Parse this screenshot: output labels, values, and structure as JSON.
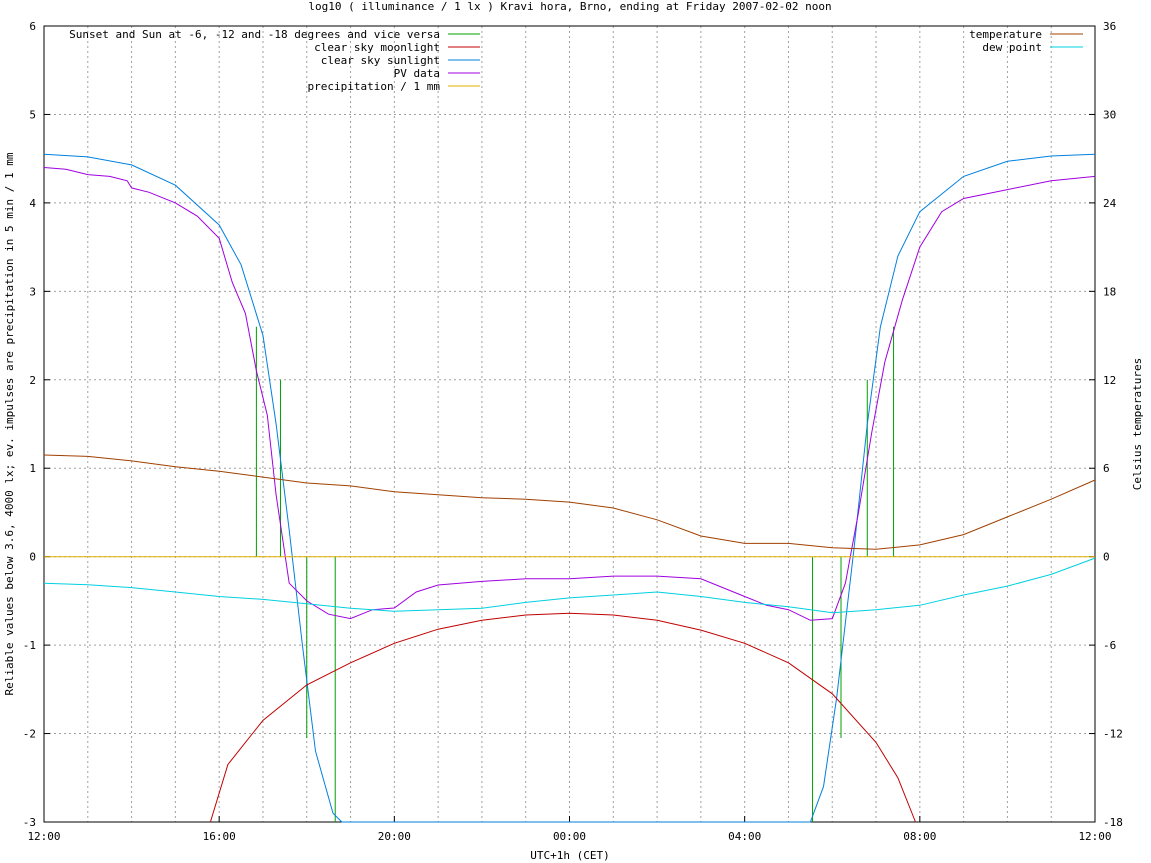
{
  "chart_data": {
    "type": "line",
    "title": "log10 ( illuminance / 1 lx ) Kravi hora, Brno, ending at Friday 2007-02-02 noon",
    "xlabel": "UTC+1h (CET)",
    "ylabel": "Reliable values below 3.6, 4000 lx; ev. impulses are precipitation in 5 min / 1 mm",
    "y2label": "Celsius temperatures",
    "xlim": [
      0,
      24
    ],
    "ylim": [
      -3,
      6
    ],
    "y2lim": [
      -18,
      36
    ],
    "x_unit": "hours since 12:00 (Thursday 2007-02-01)",
    "x_ticks": [
      {
        "v": 0,
        "label": "12:00"
      },
      {
        "v": 4,
        "label": "16:00"
      },
      {
        "v": 8,
        "label": "20:00"
      },
      {
        "v": 12,
        "label": "00:00"
      },
      {
        "v": 16,
        "label": "04:00"
      },
      {
        "v": 20,
        "label": "08:00"
      },
      {
        "v": 24,
        "label": "12:00"
      }
    ],
    "y_ticks": [
      {
        "v": 6,
        "label": "6"
      },
      {
        "v": 5,
        "label": "5"
      },
      {
        "v": 4,
        "label": "4"
      },
      {
        "v": 3,
        "label": "3"
      },
      {
        "v": 2,
        "label": "2"
      },
      {
        "v": 1,
        "label": "1"
      },
      {
        "v": 0,
        "label": "0"
      },
      {
        "v": -1,
        "label": "-1"
      },
      {
        "v": -2,
        "label": "-2"
      },
      {
        "v": -3,
        "label": "-3"
      }
    ],
    "y2_ticks": [
      {
        "v": 36,
        "label": "36"
      },
      {
        "v": 30,
        "label": "30"
      },
      {
        "v": 24,
        "label": "24"
      },
      {
        "v": 18,
        "label": "18"
      },
      {
        "v": 12,
        "label": "12"
      },
      {
        "v": 6,
        "label": "6"
      },
      {
        "v": 0,
        "label": "0"
      },
      {
        "v": -6,
        "label": "-6"
      },
      {
        "v": -12,
        "label": "-12"
      },
      {
        "v": -18,
        "label": "-18"
      }
    ],
    "grid": true,
    "grid_step_hours": 1,
    "legend_left": [
      {
        "label": "Sunset and Sun at -6, -12 and -18 degrees and vice versa",
        "color": "#00a000"
      },
      {
        "label": "clear sky moonlight",
        "color": "#c00000"
      },
      {
        "label": "clear sky sunlight",
        "color": "#0080e0"
      },
      {
        "label": "PV data",
        "color": "#a000e0"
      },
      {
        "label": "precipitation / 1 mm",
        "color": "#e0b000"
      }
    ],
    "legend_right": [
      {
        "label": "temperature",
        "color": "#a04000"
      },
      {
        "label": "dew point",
        "color": "#00d0e0"
      }
    ],
    "sun_markers": [
      {
        "x": 4.85,
        "y": 2.6
      },
      {
        "x": 5.4,
        "y": 2.0
      },
      {
        "x": 6.0,
        "y": -2.05
      },
      {
        "x": 6.65,
        "y": -3.0
      },
      {
        "x": 17.55,
        "y": -3.0
      },
      {
        "x": 18.2,
        "y": -2.05
      },
      {
        "x": 18.8,
        "y": 2.0
      },
      {
        "x": 19.4,
        "y": 2.6
      }
    ],
    "series": [
      {
        "name": "clear sky sunlight",
        "color": "#0080e0",
        "axis": "y1",
        "x": [
          0,
          1,
          2,
          3,
          4,
          4.5,
          5,
          5.3,
          5.6,
          5.9,
          6.2,
          6.6,
          6.8,
          17.5,
          17.8,
          18.1,
          18.5,
          18.8,
          19.1,
          19.5,
          20,
          21,
          22,
          23,
          24
        ],
        "y": [
          4.55,
          4.52,
          4.43,
          4.2,
          3.75,
          3.3,
          2.5,
          1.5,
          0.3,
          -1.0,
          -2.2,
          -2.9,
          -3.0,
          -3.0,
          -2.6,
          -1.6,
          0.1,
          1.5,
          2.6,
          3.4,
          3.9,
          4.3,
          4.47,
          4.53,
          4.55
        ]
      },
      {
        "name": "clear sky moonlight",
        "color": "#c00000",
        "axis": "y1",
        "x": [
          3.8,
          4.2,
          5,
          6,
          7,
          8,
          9,
          10,
          11,
          12,
          13,
          14,
          15,
          16,
          17,
          18,
          19,
          19.5,
          19.9
        ],
        "y": [
          -3.0,
          -2.35,
          -1.85,
          -1.45,
          -1.2,
          -0.98,
          -0.82,
          -0.72,
          -0.66,
          -0.64,
          -0.66,
          -0.72,
          -0.83,
          -0.98,
          -1.2,
          -1.55,
          -2.1,
          -2.5,
          -3.0
        ]
      },
      {
        "name": "PV data",
        "color": "#a000e0",
        "axis": "y1",
        "x": [
          0,
          0.5,
          1,
          1.5,
          1.9,
          2,
          2.4,
          3,
          3.5,
          4,
          4.3,
          4.6,
          4.85,
          5.1,
          5.3,
          5.6,
          6,
          6.5,
          7,
          7.5,
          8,
          8.5,
          9,
          10,
          11,
          12,
          13,
          14,
          15,
          16,
          16.5,
          17,
          17.5,
          18,
          18.3,
          18.6,
          18.9,
          19.2,
          19.6,
          20,
          20.5,
          21,
          22,
          23,
          24
        ],
        "y": [
          4.4,
          4.38,
          4.32,
          4.3,
          4.25,
          4.17,
          4.12,
          4.0,
          3.85,
          3.6,
          3.1,
          2.75,
          2.1,
          1.6,
          0.7,
          -0.3,
          -0.5,
          -0.65,
          -0.7,
          -0.6,
          -0.58,
          -0.4,
          -0.32,
          -0.28,
          -0.25,
          -0.25,
          -0.22,
          -0.22,
          -0.25,
          -0.45,
          -0.55,
          -0.6,
          -0.72,
          -0.7,
          -0.3,
          0.5,
          1.4,
          2.2,
          2.9,
          3.5,
          3.9,
          4.05,
          4.15,
          4.25,
          4.3
        ]
      },
      {
        "name": "precipitation / 1 mm",
        "color": "#e0b000",
        "axis": "y1",
        "x": [
          0,
          24
        ],
        "y": [
          0,
          0
        ]
      },
      {
        "name": "temperature",
        "color": "#a04000",
        "axis": "y2",
        "x": [
          0,
          1,
          2,
          3,
          4,
          5,
          6,
          7,
          8,
          9,
          10,
          11,
          12,
          13,
          14,
          15,
          16,
          17,
          18,
          19,
          20,
          21,
          22,
          23,
          24
        ],
        "y": [
          6.9,
          6.8,
          6.5,
          6.1,
          5.8,
          5.4,
          5.0,
          4.8,
          4.4,
          4.2,
          4.0,
          3.9,
          3.7,
          3.3,
          2.5,
          1.4,
          0.9,
          0.9,
          0.6,
          0.5,
          0.8,
          1.5,
          2.7,
          3.9,
          5.2
        ]
      },
      {
        "name": "dew point",
        "color": "#00d0e0",
        "axis": "y2",
        "x": [
          0,
          1,
          2,
          3,
          4,
          5,
          6,
          7,
          8,
          9,
          10,
          11,
          12,
          13,
          14,
          15,
          16,
          17,
          18,
          19,
          20,
          21,
          22,
          23,
          24
        ],
        "y": [
          -1.8,
          -1.9,
          -2.1,
          -2.4,
          -2.7,
          -2.9,
          -3.2,
          -3.5,
          -3.7,
          -3.6,
          -3.5,
          -3.1,
          -2.8,
          -2.6,
          -2.4,
          -2.7,
          -3.1,
          -3.4,
          -3.8,
          -3.6,
          -3.3,
          -2.6,
          -2.0,
          -1.2,
          -0.1
        ]
      }
    ]
  }
}
